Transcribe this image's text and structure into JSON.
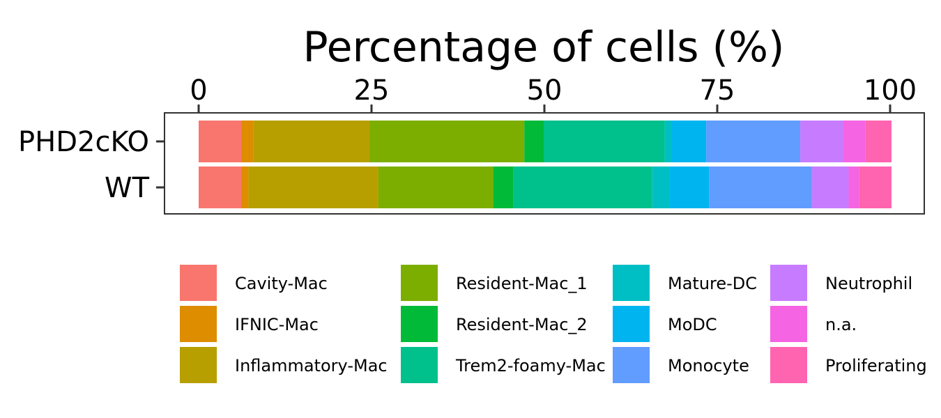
{
  "chart_data": {
    "type": "bar",
    "orientation": "horizontal",
    "stacked": true,
    "title": "Percentage of cells (%)",
    "xlabel": "Percentage of cells (%)",
    "ylabel": "",
    "x_axis_position": "top",
    "xlim": [
      0,
      100
    ],
    "x_ticks": [
      0,
      25,
      50,
      75,
      100
    ],
    "x_tick_labels": [
      "0",
      "25",
      "50",
      "75",
      "100"
    ],
    "categories": [
      "PHD2cKO",
      "WT"
    ],
    "series": [
      {
        "name": "Cavity-Mac",
        "color": "#F8766D",
        "values": [
          6.2,
          6.2
        ]
      },
      {
        "name": "IFNIC-Mac",
        "color": "#DE8C00",
        "values": [
          1.7,
          1.0
        ]
      },
      {
        "name": "Inflammatory-Mac",
        "color": "#B79F00",
        "values": [
          16.8,
          18.8
        ]
      },
      {
        "name": "Resident-Mac_1",
        "color": "#7CAE00",
        "values": [
          22.4,
          16.6
        ]
      },
      {
        "name": "Resident-Mac_2",
        "color": "#00BA38",
        "values": [
          2.8,
          2.9
        ]
      },
      {
        "name": "Trem2-foamy-Mac",
        "color": "#00C08B",
        "values": [
          17.5,
          20.1
        ]
      },
      {
        "name": "Mature-DC",
        "color": "#00BFC4",
        "values": [
          1.0,
          2.5
        ]
      },
      {
        "name": "MoDC",
        "color": "#00B4F0",
        "values": [
          5.0,
          5.7
        ]
      },
      {
        "name": "Monocyte",
        "color": "#619CFF",
        "values": [
          13.6,
          14.9
        ]
      },
      {
        "name": "Neutrophil",
        "color": "#C77CFF",
        "values": [
          6.2,
          5.3
        ]
      },
      {
        "name": "n.a.",
        "color": "#F564E3",
        "values": [
          3.2,
          1.5
        ]
      },
      {
        "name": "Proliferating",
        "color": "#FF64B0",
        "values": [
          3.8,
          4.7
        ]
      }
    ],
    "legend_position": "bottom",
    "grid": false
  }
}
